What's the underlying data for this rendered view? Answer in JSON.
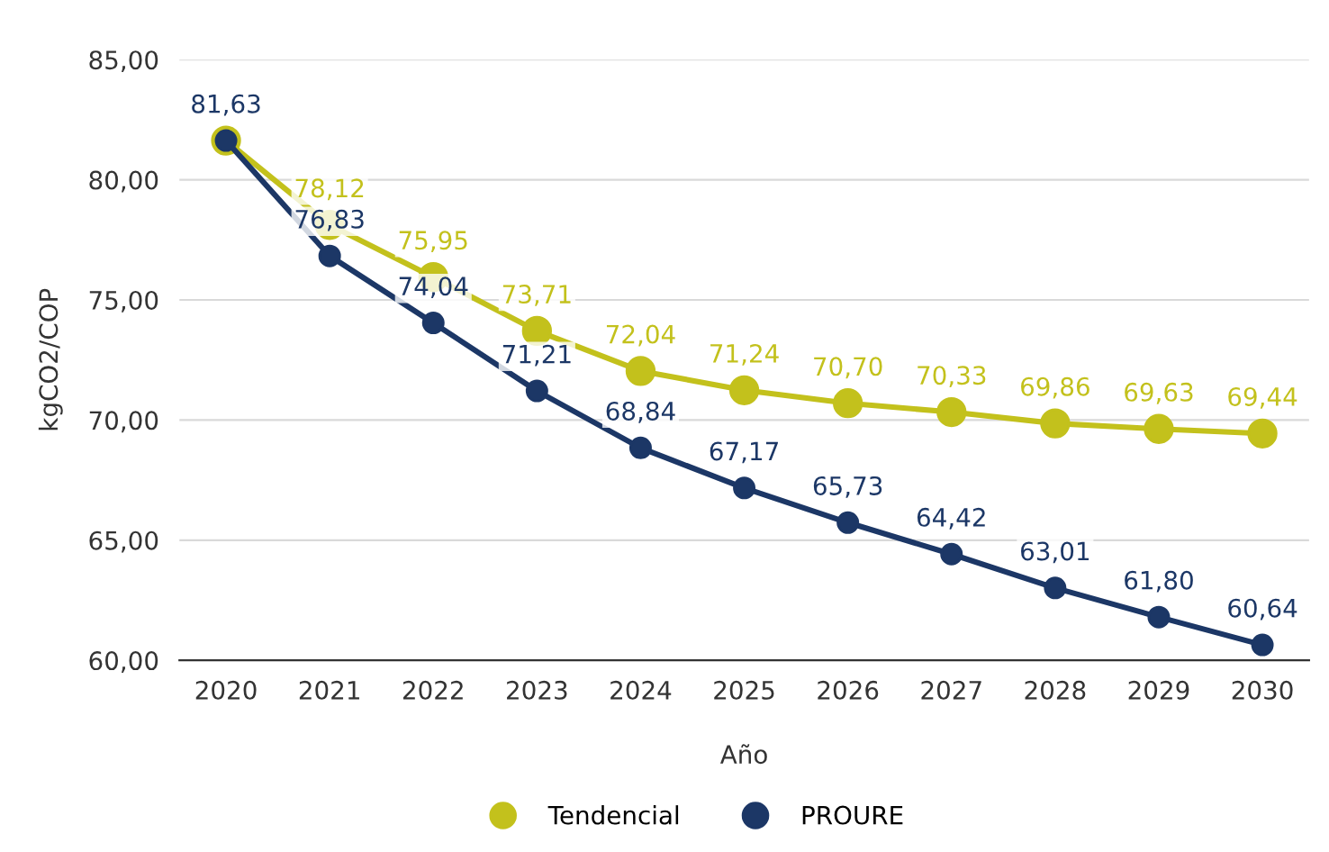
{
  "chart_data": {
    "type": "line",
    "xlabel": "Año",
    "ylabel": "kgCO2/COP",
    "categories": [
      "2020",
      "2021",
      "2022",
      "2023",
      "2024",
      "2025",
      "2026",
      "2027",
      "2028",
      "2029",
      "2030"
    ],
    "series": [
      {
        "name": "Tendencial",
        "color": "#c3c11c",
        "values": [
          81.63,
          78.12,
          75.95,
          73.71,
          72.04,
          71.24,
          70.7,
          70.33,
          69.86,
          69.63,
          69.44
        ],
        "value_labels": [
          null,
          "78,12",
          "75,95",
          "73,71",
          "72,04",
          "71,24",
          "70,70",
          "70,33",
          "69,86",
          "69,63",
          "69,44"
        ]
      },
      {
        "name": "PROURE",
        "color": "#1c3766",
        "values": [
          81.63,
          76.83,
          74.04,
          71.21,
          68.84,
          67.17,
          65.73,
          64.42,
          63.01,
          61.8,
          60.64
        ],
        "value_labels": [
          "81,63",
          "76,83",
          "74,04",
          "71,21",
          "68,84",
          "67,17",
          "65,73",
          "64,42",
          "63,01",
          "61,80",
          "60,64"
        ]
      }
    ],
    "ylim": [
      60,
      85
    ],
    "yticks": [
      {
        "value": 60,
        "label": "60,00"
      },
      {
        "value": 65,
        "label": "65,00"
      },
      {
        "value": 70,
        "label": "70,00"
      },
      {
        "value": 75,
        "label": "75,00"
      },
      {
        "value": 80,
        "label": "80,00"
      },
      {
        "value": 85,
        "label": "85,00"
      }
    ],
    "grid": "y",
    "legend": "bottom",
    "marker": "circle",
    "line_style": "solid"
  }
}
